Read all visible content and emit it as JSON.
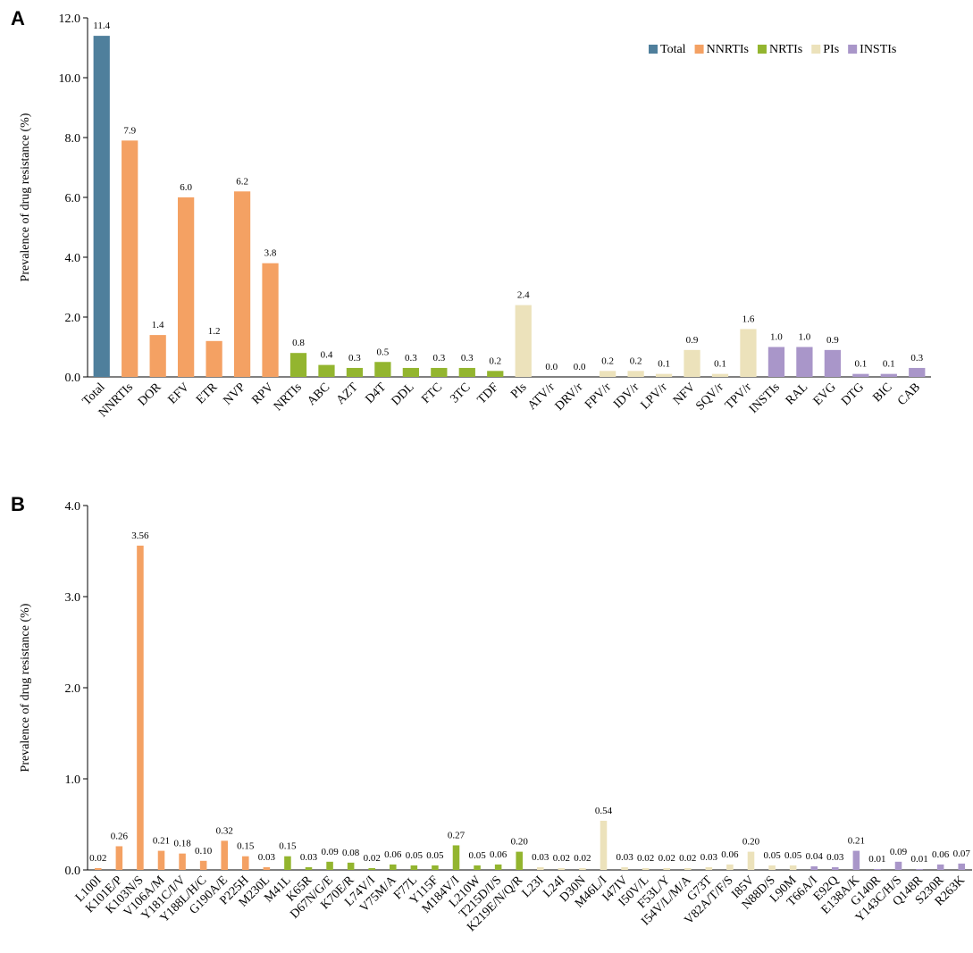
{
  "colors": {
    "Total": "#4f7f9c",
    "NNRTIs": "#f4a163",
    "NRTIs": "#93b52f",
    "PIs": "#ece2bb",
    "INSTIs": "#a996c9"
  },
  "chart_data": [
    {
      "panel": "A",
      "type": "bar",
      "ylabel": "Prevalence of  drug resistance (%)",
      "ylim": [
        0,
        12
      ],
      "yticks": [
        "0.0",
        "2.0",
        "4.0",
        "6.0",
        "8.0",
        "10.0",
        "12.0"
      ],
      "legend": {
        "position": "top-right",
        "entries": [
          "Total",
          "NNRTIs",
          "NRTIs",
          "PIs",
          "INSTIs"
        ]
      },
      "categories": [
        "Total",
        "NNRTIs",
        "DOR",
        "EFV",
        "ETR",
        "NVP",
        "RPV",
        "NRTIs",
        "ABC",
        "AZT",
        "D4T",
        "DDL",
        "FTC",
        "3TC",
        "TDF",
        "PIs",
        "ATV/r",
        "DRV/r",
        "FPV/r",
        "IDV/r",
        "LPV/r",
        "NFV",
        "SQV/r",
        "TPV/r",
        "INSTIs",
        "RAL",
        "EVG",
        "DTG",
        "BIC",
        "CAB"
      ],
      "values": [
        11.4,
        7.9,
        1.4,
        6.0,
        1.2,
        6.2,
        3.8,
        0.8,
        0.4,
        0.3,
        0.5,
        0.3,
        0.3,
        0.3,
        0.2,
        2.4,
        0.0,
        0.0,
        0.2,
        0.2,
        0.1,
        0.9,
        0.1,
        1.6,
        1.0,
        1.0,
        0.9,
        0.1,
        0.1,
        0.3
      ],
      "labels": [
        "11.4",
        "7.9",
        "1.4",
        "6.0",
        "1.2",
        "6.2",
        "3.8",
        "0.8",
        "0.4",
        "0.3",
        "0.5",
        "0.3",
        "0.3",
        "0.3",
        "0.2",
        "2.4",
        "0.0",
        "0.0",
        "0.2",
        "0.2",
        "0.1",
        "0.9",
        "0.1",
        "1.6",
        "1.0",
        "1.0",
        "0.9",
        "0.1",
        "0.1",
        "0.3"
      ],
      "groups": [
        "Total",
        "NNRTIs",
        "NNRTIs",
        "NNRTIs",
        "NNRTIs",
        "NNRTIs",
        "NNRTIs",
        "NRTIs",
        "NRTIs",
        "NRTIs",
        "NRTIs",
        "NRTIs",
        "NRTIs",
        "NRTIs",
        "NRTIs",
        "PIs",
        "PIs",
        "PIs",
        "PIs",
        "PIs",
        "PIs",
        "PIs",
        "PIs",
        "PIs",
        "INSTIs",
        "INSTIs",
        "INSTIs",
        "INSTIs",
        "INSTIs",
        "INSTIs"
      ]
    },
    {
      "panel": "B",
      "type": "bar",
      "ylabel": "Prevalence of  drug resistance (%)",
      "ylim": [
        0,
        4
      ],
      "yticks": [
        "0.0",
        "1.0",
        "2.0",
        "3.0",
        "4.0"
      ],
      "categories": [
        "L100I",
        "K101E/P",
        "K103N/S",
        "V106A/M",
        "Y181C/I/V",
        "Y188L/H/C",
        "G190A/E",
        "P225H",
        "M230L",
        "M41L",
        "K65R",
        "D67N/G/E",
        "K70E/R",
        "L74V/I",
        "V75M/A",
        "F77L",
        "Y115F",
        "M184V/I",
        "L210W",
        "T215D/I/S",
        "K219E/N/Q/R",
        "L23I",
        "L24I",
        "D30N",
        "M46L/I",
        "I47IV",
        "I50V/L",
        "F53L/Y",
        "I54V/L/M/A",
        "G73T",
        "V82A/T/F/S",
        "I85V",
        "N88D/S",
        "L90M",
        "T66A/I",
        "E92Q",
        "E138A/K",
        "G140R",
        "Y143C/H/S",
        "Q148R",
        "S230R",
        "R263K"
      ],
      "values": [
        0.02,
        0.26,
        3.56,
        0.21,
        0.18,
        0.1,
        0.32,
        0.15,
        0.03,
        0.15,
        0.03,
        0.09,
        0.08,
        0.02,
        0.06,
        0.05,
        0.05,
        0.27,
        0.05,
        0.06,
        0.2,
        0.03,
        0.02,
        0.02,
        0.54,
        0.03,
        0.02,
        0.02,
        0.02,
        0.03,
        0.06,
        0.2,
        0.05,
        0.05,
        0.04,
        0.03,
        0.21,
        0.01,
        0.09,
        0.01,
        0.06,
        0.07
      ],
      "labels": [
        "0.02",
        "0.26",
        "3.56",
        "0.21",
        "0.18",
        "0.10",
        "0.32",
        "0.15",
        "0.03",
        "0.15",
        "0.03",
        "0.09",
        "0.08",
        "0.02",
        "0.06",
        "0.05",
        "0.05",
        "0.27",
        "0.05",
        "0.06",
        "0.20",
        "0.03",
        "0.02",
        "0.02",
        "0.54",
        "0.03",
        "0.02",
        "0.02",
        "0.02",
        "0.03",
        "0.06",
        "0.20",
        "0.05",
        "0.05",
        "0.04",
        "0.03",
        "0.21",
        "0.01",
        "0.09",
        "0.01",
        "0.06",
        "0.07"
      ],
      "groups": [
        "NNRTIs",
        "NNRTIs",
        "NNRTIs",
        "NNRTIs",
        "NNRTIs",
        "NNRTIs",
        "NNRTIs",
        "NNRTIs",
        "NNRTIs",
        "NRTIs",
        "NRTIs",
        "NRTIs",
        "NRTIs",
        "NRTIs",
        "NRTIs",
        "NRTIs",
        "NRTIs",
        "NRTIs",
        "NRTIs",
        "NRTIs",
        "NRTIs",
        "PIs",
        "PIs",
        "PIs",
        "PIs",
        "PIs",
        "PIs",
        "PIs",
        "PIs",
        "PIs",
        "PIs",
        "PIs",
        "PIs",
        "PIs",
        "INSTIs",
        "INSTIs",
        "INSTIs",
        "INSTIs",
        "INSTIs",
        "INSTIs",
        "INSTIs",
        "INSTIs"
      ]
    }
  ]
}
